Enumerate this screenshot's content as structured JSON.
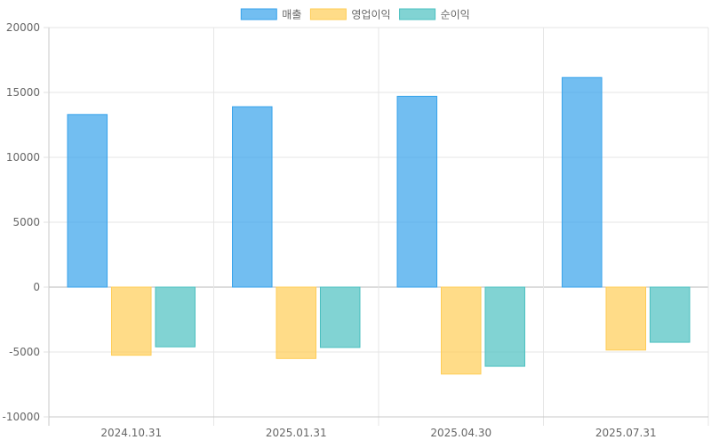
{
  "chart_data": {
    "type": "bar",
    "categories": [
      "2024.10.31",
      "2025.01.31",
      "2025.04.30",
      "2025.07.31"
    ],
    "series": [
      {
        "name": "매출",
        "values": [
          13300,
          13900,
          14700,
          16150
        ],
        "fill": "#36a2eb",
        "stroke": "#36a2eb"
      },
      {
        "name": "영업이익",
        "values": [
          -5250,
          -5500,
          -6700,
          -4850
        ],
        "fill": "#ffcd56",
        "stroke": "#ffcd56"
      },
      {
        "name": "순이익",
        "values": [
          -4600,
          -4650,
          -6100,
          -4250
        ],
        "fill": "#4bc0c0",
        "stroke": "#4bc0c0"
      }
    ],
    "ylim": [
      -10000,
      20000
    ],
    "yticks": [
      20000,
      15000,
      10000,
      5000,
      0,
      -5000,
      -10000
    ],
    "grid": true,
    "legend_position": "top"
  }
}
